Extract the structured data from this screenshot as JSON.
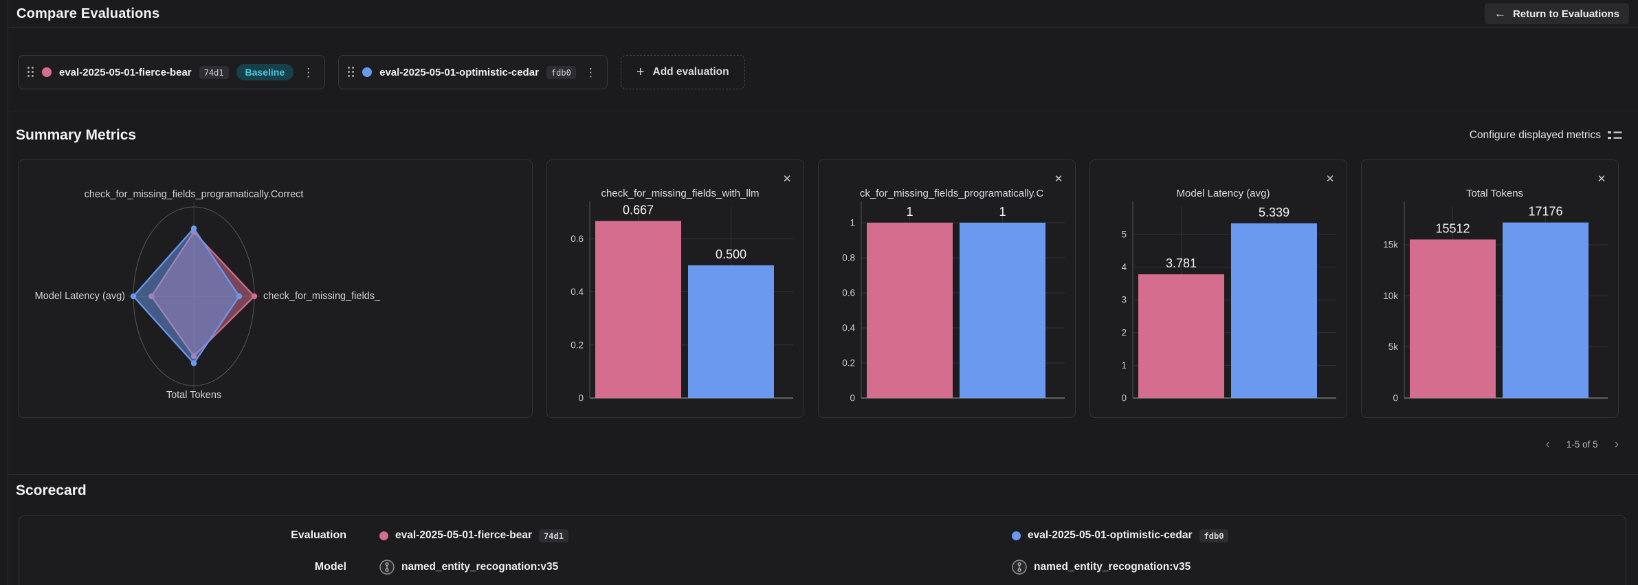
{
  "header": {
    "title": "Compare Evaluations",
    "return_label": "Return to Evaluations"
  },
  "icons": {
    "back_arrow": "←",
    "plus": "+",
    "kebab": "⋮",
    "close": "✕",
    "chevron_left": "‹",
    "chevron_right": "›"
  },
  "colors": {
    "baseline_series": "#d56d8e",
    "candidate_series": "#6b99ef",
    "baseline_pill_bg": "#17404a",
    "baseline_pill_text": "#4ec9da"
  },
  "evaluations": [
    {
      "name": "eval-2025-05-01-fierce-bear",
      "id": "74d1",
      "baseline_label": "Baseline",
      "color": "#d56d8e"
    },
    {
      "name": "eval-2025-05-01-optimistic-cedar",
      "id": "fdb0",
      "color": "#6b99ef"
    }
  ],
  "toolbar": {
    "add_label": "Add evaluation"
  },
  "summary": {
    "title": "Summary Metrics",
    "configure_label": "Configure displayed metrics",
    "pagination": {
      "label": "1-5 of 5"
    }
  },
  "scorecard": {
    "title": "Scorecard",
    "eval_row_label": "Evaluation",
    "model_row_label": "Model",
    "models": [
      "named_entity_recognation:v35",
      "named_entity_recognation:v35"
    ]
  },
  "chart_data": [
    {
      "type": "radar",
      "axes": [
        {
          "label": "check_for_missing_fields_programatically.Correct",
          "values": [
            1,
            1
          ]
        },
        {
          "label": "check_for_missing_fields_",
          "values": [
            0.667,
            0.5
          ]
        },
        {
          "label": "Total Tokens",
          "values": [
            15512,
            17176
          ]
        },
        {
          "label": "Model Latency (avg)",
          "values": [
            3.781,
            5.339
          ]
        }
      ],
      "series": [
        {
          "name": "eval-2025-05-01-fierce-bear",
          "color": "#d56d8e",
          "r_normalized": [
            0.72,
            1.0,
            0.67,
            0.7
          ]
        },
        {
          "name": "eval-2025-05-01-optimistic-cedar",
          "color": "#6b99ef",
          "r_normalized": [
            0.76,
            0.75,
            0.75,
            1.0
          ]
        }
      ]
    },
    {
      "type": "bar",
      "title": "check_for_missing_fields_with_llm",
      "categories": [
        "eval-2025-05-01-fierce-bear",
        "eval-2025-05-01-optimistic-cedar"
      ],
      "values": [
        0.667,
        0.5
      ],
      "value_labels": [
        "0.667",
        "0.500"
      ],
      "colors": [
        "#d56d8e",
        "#6b99ef"
      ],
      "yticks": [
        0,
        0.2,
        0.4,
        0.6
      ],
      "ytick_labels": [
        "0",
        "0.2",
        "0.4",
        "0.6"
      ],
      "ylim": [
        0,
        0.72
      ],
      "grid": true
    },
    {
      "type": "bar",
      "title": "ck_for_missing_fields_programatically.C",
      "categories": [
        "eval-2025-05-01-fierce-bear",
        "eval-2025-05-01-optimistic-cedar"
      ],
      "values": [
        1,
        1
      ],
      "value_labels": [
        "1",
        "1"
      ],
      "colors": [
        "#d56d8e",
        "#6b99ef"
      ],
      "yticks": [
        0,
        0.2,
        0.4,
        0.6,
        0.8,
        1
      ],
      "ytick_labels": [
        "0",
        "0.2",
        "0.4",
        "0.6",
        "0.8",
        "1"
      ],
      "ylim": [
        0,
        1.09
      ],
      "grid": true
    },
    {
      "type": "bar",
      "title": "Model Latency (avg)",
      "categories": [
        "eval-2025-05-01-fierce-bear",
        "eval-2025-05-01-optimistic-cedar"
      ],
      "values": [
        3.781,
        5.339
      ],
      "value_labels": [
        "3.781",
        "5.339"
      ],
      "colors": [
        "#d56d8e",
        "#6b99ef"
      ],
      "yticks": [
        0,
        1,
        2,
        3,
        4,
        5
      ],
      "ytick_labels": [
        "0",
        "1",
        "2",
        "3",
        "4",
        "5"
      ],
      "ylim": [
        0,
        5.84
      ],
      "grid": true
    },
    {
      "type": "bar",
      "title": "Total Tokens",
      "categories": [
        "eval-2025-05-01-fierce-bear",
        "eval-2025-05-01-optimistic-cedar"
      ],
      "values": [
        15512,
        17176
      ],
      "value_labels": [
        "15512",
        "17176"
      ],
      "colors": [
        "#d56d8e",
        "#6b99ef"
      ],
      "yticks": [
        0,
        5000,
        10000,
        15000
      ],
      "ytick_labels": [
        "0",
        "5k",
        "10k",
        "15k"
      ],
      "ylim": [
        0,
        18700
      ],
      "grid": true
    }
  ]
}
